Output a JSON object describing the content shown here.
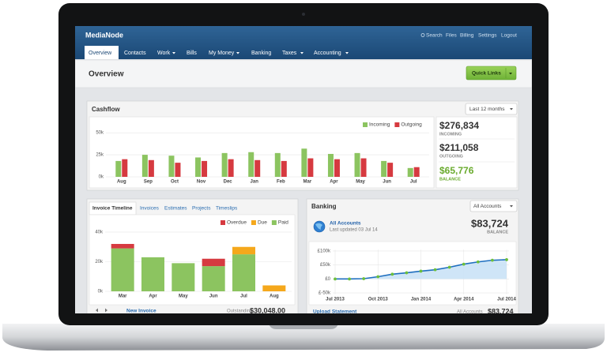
{
  "app": {
    "brand": "MediaNode",
    "top_links": [
      "Search",
      "Files",
      "Billing",
      "Settings",
      "Logout"
    ]
  },
  "nav": [
    "Overview",
    "Contacts",
    "Work",
    "Bills",
    "My Money",
    "Banking",
    "Taxes",
    "Accounting"
  ],
  "page": {
    "title": "Overview",
    "quick_links": "Quick Links"
  },
  "cashflow": {
    "title": "Cashflow",
    "period": "Last 12 months",
    "summary": [
      {
        "amount": "$276,834",
        "label": "INCOMING"
      },
      {
        "amount": "$211,058",
        "label": "OUTGOING"
      },
      {
        "amount": "$65,776",
        "label": "BALANCE"
      }
    ]
  },
  "invoices": {
    "tabs": [
      "Invoice Timeline",
      "Invoices",
      "Estimates",
      "Projects",
      "Timeslips"
    ],
    "new_invoice": "New Invoice",
    "outstanding_label": "Outstanding",
    "outstanding": "$30,048.00"
  },
  "banking": {
    "title": "Banking",
    "account_select": "All Accounts",
    "account": "All Accounts",
    "updated": "Last updated 03 Jul 14",
    "balance": "$83,724",
    "balance_label": "BALANCE",
    "upload": "Upload Statement",
    "footer_label": "All Accounts",
    "footer_balance": "$83,724"
  },
  "chart_data": [
    {
      "type": "bar",
      "categories": [
        "Aug",
        "Sep",
        "Oct",
        "Nov",
        "Dec",
        "Jan",
        "Feb",
        "Mar",
        "Apr",
        "May",
        "Jun",
        "Jul"
      ],
      "series": [
        {
          "name": "Incoming",
          "color": "#8cc460",
          "values": [
            18000,
            25000,
            24000,
            22000,
            27000,
            28000,
            27000,
            32000,
            26000,
            27000,
            18000,
            10000
          ]
        },
        {
          "name": "Outgoing",
          "color": "#d63a40",
          "values": [
            20000,
            19000,
            16000,
            18000,
            20000,
            19000,
            18000,
            21000,
            20000,
            21000,
            16000,
            11000
          ]
        }
      ],
      "ylim": [
        0,
        60000
      ],
      "yticks": [
        {
          "value": 0,
          "label": "0k"
        },
        {
          "value": 25000,
          "label": "25k"
        },
        {
          "value": 50000,
          "label": "50k"
        }
      ],
      "grid": true,
      "legend": "top-right"
    },
    {
      "type": "stacked",
      "categories": [
        "Mar",
        "Apr",
        "May",
        "Jun",
        "Jul",
        "Aug"
      ],
      "series": [
        {
          "name": "Overdue",
          "color": "#d63a40",
          "values": [
            3000,
            0,
            0,
            5000,
            0,
            0
          ]
        },
        {
          "name": "Due",
          "color": "#f5a81c",
          "values": [
            0,
            0,
            0,
            0,
            5000,
            4000
          ]
        },
        {
          "name": "Paid",
          "color": "#8cc460",
          "values": [
            29000,
            23000,
            19000,
            17000,
            25000,
            0
          ]
        }
      ],
      "ylim": [
        0,
        45000
      ],
      "yticks": [
        {
          "value": 0,
          "label": "0k"
        },
        {
          "value": 20000,
          "label": "20k"
        },
        {
          "value": 40000,
          "label": "40k"
        }
      ],
      "grid": true,
      "legend": "top-right"
    },
    {
      "type": "area",
      "categories": [
        "Jul 2013",
        null,
        null,
        "Oct 2013",
        null,
        null,
        "Jan 2014",
        null,
        null,
        "Apr 2014",
        null,
        null,
        "Jul 2014"
      ],
      "values": [
        0,
        0,
        1000,
        8000,
        17000,
        22000,
        28000,
        33000,
        42000,
        53000,
        61000,
        67000,
        69000
      ],
      "color": "#1f6fbf",
      "fill": "#c7e1f6",
      "marker_color": "#6cbf3c",
      "ylim": [
        -55000,
        105000
      ],
      "yticks": [
        {
          "value": 100000,
          "label": "£100k"
        },
        {
          "value": 50000,
          "label": "£50k"
        },
        {
          "value": 0,
          "label": "£0"
        },
        {
          "value": -50000,
          "label": "£-50k"
        }
      ],
      "grid": true
    }
  ]
}
